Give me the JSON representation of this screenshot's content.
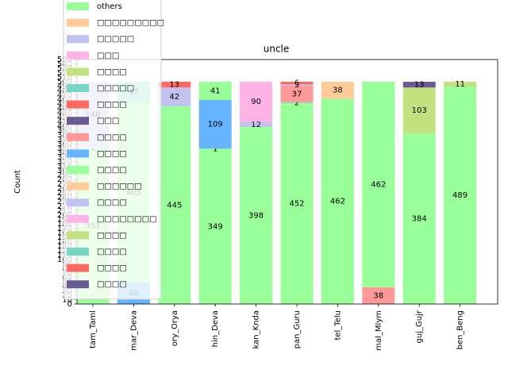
{
  "chart_data": {
    "type": "stacked_bar",
    "title": "uncle",
    "ylabel": "Count",
    "categories": [
      "tam_Taml",
      "mar_Deva",
      "ory_Orya",
      "hin_Deva",
      "kan_Knda",
      "pan_Guru",
      "tel_Telu",
      "mal_Mlym",
      "guj_Gujr",
      "ben_Beng"
    ],
    "ylim": [
      0,
      550
    ],
    "yticks": [
      0,
      10,
      20,
      30,
      40,
      50,
      60,
      70,
      80,
      90,
      100,
      110,
      120,
      130,
      140,
      150,
      160,
      170,
      180,
      190,
      200,
      210,
      220,
      230,
      240,
      250,
      260,
      270,
      280,
      290,
      300,
      310,
      320,
      330,
      340,
      350,
      360,
      370,
      380,
      390,
      400,
      410,
      420,
      430,
      440,
      450,
      460,
      470,
      480,
      490,
      500,
      510,
      520,
      530,
      540,
      550
    ],
    "legend": "upper left",
    "series": [
      {
        "name": "others",
        "color": "#99ff99",
        "values": [
          351,
          null,
          445,
          349,
          398,
          452,
          462,
          null,
          384,
          489
        ]
      },
      {
        "name": "□□□□□□□□□",
        "color": "#ffcc99",
        "values": [
          null,
          null,
          null,
          null,
          null,
          null,
          null,
          null,
          null,
          null
        ]
      },
      {
        "name": "□□□□□",
        "color": "#c2c2f0",
        "values": [
          null,
          null,
          42,
          null,
          12,
          null,
          null,
          null,
          null,
          null
        ]
      },
      {
        "name": "□□□",
        "color": "#ffb3e6",
        "values": [
          null,
          null,
          null,
          null,
          90,
          null,
          null,
          null,
          null,
          null
        ]
      },
      {
        "name": "□□□□",
        "color": "#c4e17f",
        "values": [
          null,
          null,
          null,
          null,
          null,
          null,
          null,
          null,
          103,
          null
        ]
      },
      {
        "name": "□□□□□",
        "color": "#76d7c4",
        "values": [
          null,
          null,
          null,
          1,
          null,
          2,
          null,
          null,
          null,
          null
        ]
      },
      {
        "name": "□□□□",
        "color": "#ff6961",
        "values": [
          null,
          null,
          13,
          null,
          null,
          null,
          null,
          null,
          null,
          null
        ]
      },
      {
        "name": "□□□",
        "color": "#6b5b95",
        "values": [
          null,
          null,
          null,
          null,
          null,
          null,
          null,
          null,
          13,
          null
        ]
      },
      {
        "name": "□□□□",
        "color": "#ff9999",
        "values": [
          null,
          null,
          null,
          null,
          null,
          37,
          null,
          38,
          null,
          null
        ]
      },
      {
        "name": "□□□□",
        "color": "#66b3ff",
        "values": [
          null,
          48,
          null,
          109,
          null,
          null,
          null,
          null,
          null,
          null
        ]
      },
      {
        "name": "□□□□",
        "color": "#99ff99",
        "values": [
          null,
          405,
          null,
          41,
          null,
          null,
          null,
          462,
          null,
          null
        ]
      },
      {
        "name": "□□□□□□",
        "color": "#ffcc99",
        "values": [
          1,
          null,
          null,
          null,
          null,
          null,
          38,
          null,
          null,
          null
        ]
      },
      {
        "name": "□□□□",
        "color": "#c2c2f0",
        "values": [
          148,
          null,
          null,
          null,
          null,
          3,
          null,
          null,
          null,
          null
        ]
      },
      {
        "name": "□□□□□□□□",
        "color": "#ffb3e6",
        "values": [
          null,
          null,
          null,
          null,
          null,
          null,
          null,
          null,
          null,
          null
        ]
      },
      {
        "name": "□□□□",
        "color": "#c4e17f",
        "values": [
          null,
          null,
          null,
          null,
          null,
          null,
          null,
          null,
          null,
          11
        ]
      },
      {
        "name": "□□□□",
        "color": "#76d7c4",
        "values": [
          null,
          47,
          null,
          null,
          null,
          null,
          null,
          null,
          null,
          null
        ]
      },
      {
        "name": "□□□□",
        "color": "#ff6961",
        "values": [
          null,
          null,
          null,
          null,
          null,
          6,
          null,
          null,
          null,
          null
        ]
      },
      {
        "name": "□□□□",
        "color": "#6b5b95",
        "values": [
          null,
          null,
          null,
          null,
          null,
          null,
          null,
          null,
          null,
          null
        ]
      }
    ]
  }
}
